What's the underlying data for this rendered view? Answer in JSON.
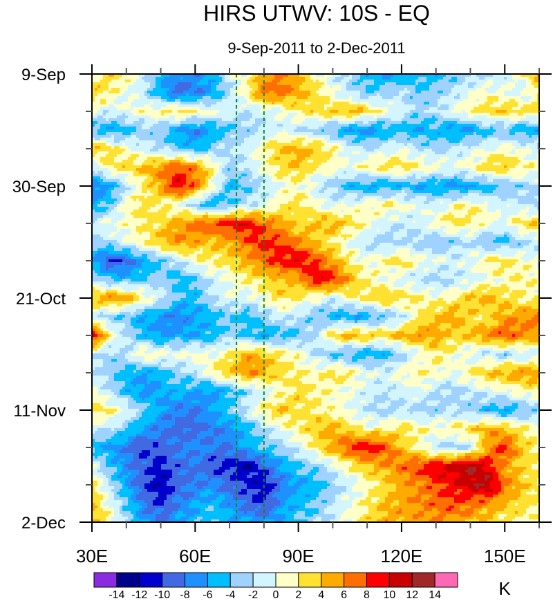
{
  "chart_data": {
    "type": "heatmap",
    "subtype": "filled-contour hovmoller",
    "title": "HIRS UTWV: 10S - EQ",
    "subtitle": "9-Sep-2011 to 2-Dec-2011",
    "xlabel": "",
    "ylabel": "",
    "units": "K",
    "x_range": [
      30,
      160
    ],
    "x_ticks": [
      30,
      60,
      90,
      120,
      150
    ],
    "x_tick_labels": [
      "30E",
      "60E",
      "90E",
      "120E",
      "150E"
    ],
    "x_minor_step": 10,
    "y_range_days": [
      0,
      84
    ],
    "y_ticks_days": [
      0,
      21,
      42,
      63,
      84
    ],
    "y_tick_labels": [
      "9-Sep",
      "30-Sep",
      "21-Oct",
      "11-Nov",
      "2-Dec"
    ],
    "y_minor_step_days": 7,
    "y_direction": "top-to-bottom",
    "reference_lines_lon": [
      72,
      80
    ],
    "reference_line_color": "#138a13",
    "contour_levels": [
      -14,
      -12,
      -10,
      -8,
      -6,
      -4,
      -2,
      0,
      2,
      4,
      6,
      8,
      10,
      12,
      14
    ],
    "colorbar_labels": [
      "-14",
      "-12",
      "-10",
      "-8",
      "-6",
      "-4",
      "-2",
      "0",
      "2",
      "4",
      "6",
      "8",
      "10",
      "12",
      "14"
    ],
    "colors": [
      "#8a2be2",
      "#00008b",
      "#0000cd",
      "#4169e1",
      "#1e90ff",
      "#00bfff",
      "#a0d2ff",
      "#d2f5ff",
      "#ffffc8",
      "#ffe132",
      "#ffaa00",
      "#ff6e00",
      "#ff0000",
      "#c80000",
      "#a02828",
      "#ff69b4"
    ],
    "grid_lon": [
      30,
      35,
      40,
      45,
      50,
      55,
      60,
      65,
      70,
      75,
      80,
      85,
      90,
      95,
      100,
      105,
      110,
      115,
      120,
      125,
      130,
      135,
      140,
      145,
      150,
      155,
      160
    ],
    "grid_day_step": 3.5,
    "values": [
      [
        1,
        3,
        2,
        -1,
        -5,
        -7,
        -7,
        -5,
        -1,
        1,
        5,
        6,
        4,
        1,
        -1,
        -3,
        -5,
        -6,
        -6,
        -5,
        -5,
        -4,
        -3,
        -2,
        -1,
        1,
        5
      ],
      [
        4,
        2,
        0,
        -2,
        -6,
        -9,
        -8,
        -6,
        -2,
        2,
        7,
        7,
        5,
        3,
        0,
        -2,
        -4,
        -3,
        -2,
        -4,
        -3,
        -2,
        0,
        1,
        0,
        -1,
        2
      ],
      [
        0,
        -1,
        0,
        1,
        2,
        3,
        2,
        1,
        -1,
        -2,
        -1,
        0,
        2,
        3,
        4,
        5,
        3,
        1,
        -1,
        -3,
        -2,
        0,
        2,
        3,
        4,
        3,
        3
      ],
      [
        -5,
        -6,
        -5,
        -3,
        -4,
        -6,
        -8,
        -6,
        -4,
        -3,
        -2,
        -1,
        -2,
        -3,
        -5,
        -6,
        -7,
        -6,
        -5,
        -6,
        -5,
        -7,
        -6,
        -5,
        -4,
        -6,
        -5
      ],
      [
        4,
        3,
        1,
        -1,
        -2,
        -4,
        -5,
        -3,
        -2,
        -1,
        2,
        4,
        5,
        4,
        2,
        -1,
        -2,
        -1,
        0,
        -2,
        -3,
        -2,
        -1,
        0,
        1,
        0,
        -1
      ],
      [
        -2,
        2,
        3,
        4,
        6,
        8,
        6,
        2,
        -3,
        -2,
        1,
        3,
        4,
        2,
        1,
        0,
        2,
        3,
        3,
        2,
        1,
        0,
        1,
        3,
        4,
        2,
        1
      ],
      [
        -8,
        -6,
        -2,
        2,
        5,
        10,
        7,
        1,
        -5,
        -4,
        -2,
        0,
        1,
        -1,
        -3,
        -5,
        -6,
        -6,
        -5,
        -6,
        -6,
        -7,
        -6,
        -5,
        -4,
        -3,
        -2
      ],
      [
        -6,
        -4,
        1,
        3,
        2,
        0,
        -3,
        -6,
        -4,
        -2,
        -1,
        2,
        3,
        1,
        -1,
        0,
        1,
        2,
        1,
        0,
        -1,
        1,
        2,
        0,
        -1,
        -2,
        -3
      ],
      [
        -1,
        0,
        1,
        2,
        3,
        5,
        7,
        8,
        9,
        10,
        7,
        5,
        3,
        4,
        5,
        3,
        1,
        -1,
        -2,
        -1,
        1,
        3,
        2,
        1,
        0,
        3,
        4
      ],
      [
        -3,
        -2,
        0,
        2,
        4,
        6,
        5,
        4,
        5,
        7,
        9,
        8,
        6,
        4,
        2,
        0,
        -2,
        -3,
        -2,
        -3,
        -4,
        -3,
        -2,
        -4,
        -5,
        -3,
        -2
      ],
      [
        -6,
        -10,
        -9,
        -6,
        -4,
        -2,
        1,
        2,
        3,
        5,
        7,
        9,
        10,
        8,
        5,
        2,
        0,
        2,
        3,
        1,
        0,
        -1,
        0,
        2,
        3,
        1,
        0
      ],
      [
        -2,
        -4,
        -5,
        -4,
        -3,
        -5,
        -4,
        -1,
        0,
        2,
        3,
        4,
        5,
        10,
        9,
        5,
        2,
        0,
        -1,
        -2,
        -3,
        -2,
        -1,
        0,
        1,
        2,
        1
      ],
      [
        4,
        6,
        5,
        2,
        -1,
        -4,
        -5,
        -2,
        0,
        -1,
        1,
        3,
        2,
        0,
        -1,
        1,
        3,
        4,
        3,
        2,
        1,
        2,
        4,
        5,
        3,
        2,
        1
      ],
      [
        -1,
        -3,
        -4,
        -6,
        -7,
        -8,
        -6,
        -5,
        -4,
        -5,
        -3,
        -1,
        -2,
        -4,
        -5,
        -6,
        -6,
        -4,
        -2,
        2,
        4,
        5,
        3,
        2,
        5,
        6,
        7
      ],
      [
        11,
        2,
        -2,
        -5,
        -7,
        -6,
        -6,
        -5,
        -3,
        -4,
        -6,
        -5,
        -4,
        -2,
        3,
        5,
        4,
        3,
        5,
        6,
        5,
        3,
        4,
        6,
        8,
        6,
        5
      ],
      [
        -1,
        -3,
        -2,
        2,
        1,
        0,
        1,
        0,
        2,
        5,
        4,
        2,
        1,
        -2,
        -4,
        -5,
        -6,
        -5,
        -3,
        0,
        2,
        1,
        -1,
        -2,
        -3,
        -2,
        -1
      ],
      [
        -2,
        -3,
        -5,
        -6,
        -5,
        -3,
        -2,
        2,
        4,
        6,
        5,
        3,
        2,
        1,
        3,
        2,
        0,
        -1,
        1,
        2,
        1,
        0,
        2,
        4,
        5,
        6,
        5
      ],
      [
        1,
        -2,
        -5,
        -7,
        -6,
        -5,
        -6,
        -7,
        -5,
        -3,
        -1,
        1,
        3,
        2,
        1,
        0,
        -1,
        -2,
        -1,
        0,
        -2,
        -3,
        -2,
        -1,
        0,
        1,
        2
      ],
      [
        3,
        2,
        0,
        -3,
        -6,
        -8,
        -8,
        -6,
        -4,
        -1,
        2,
        4,
        3,
        2,
        1,
        0,
        -2,
        -3,
        -2,
        -3,
        -3,
        -2,
        -3,
        -5,
        -6,
        -4,
        -3
      ],
      [
        -1,
        -2,
        -4,
        -6,
        -8,
        -9,
        -9,
        -8,
        -7,
        -5,
        -2,
        0,
        2,
        4,
        5,
        3,
        1,
        2,
        3,
        2,
        1,
        2,
        3,
        5,
        4,
        2,
        1
      ],
      [
        -5,
        -6,
        -8,
        -10,
        -9,
        -8,
        -7,
        -8,
        -8,
        -6,
        -4,
        -3,
        -1,
        2,
        5,
        8,
        10,
        8,
        4,
        1,
        -2,
        -3,
        -2,
        5,
        9,
        4,
        2
      ],
      [
        0,
        -4,
        -7,
        -9,
        -11,
        -9,
        -8,
        -10,
        -11,
        -12,
        -9,
        -6,
        -4,
        -3,
        -1,
        2,
        4,
        5,
        7,
        8,
        10,
        11,
        12,
        10,
        5,
        3,
        2
      ],
      [
        3,
        -2,
        -6,
        -10,
        -12,
        -9,
        -8,
        -7,
        -9,
        -10,
        -12,
        -8,
        -6,
        -5,
        -3,
        -1,
        1,
        3,
        5,
        6,
        8,
        9,
        11,
        12,
        7,
        4,
        2
      ],
      [
        4,
        0,
        -4,
        -8,
        -10,
        -8,
        -6,
        -5,
        -7,
        -9,
        -10,
        -7,
        -5,
        -4,
        -2,
        0,
        2,
        4,
        5,
        6,
        7,
        8,
        7,
        6,
        4,
        3,
        2
      ],
      [
        5,
        2,
        -3,
        -6,
        -8,
        -6,
        -5,
        -4,
        -5,
        -6,
        -7,
        -5,
        -4,
        -3,
        -1,
        1,
        3,
        5,
        5,
        5,
        6,
        5,
        4,
        3,
        2,
        2,
        1
      ]
    ]
  }
}
